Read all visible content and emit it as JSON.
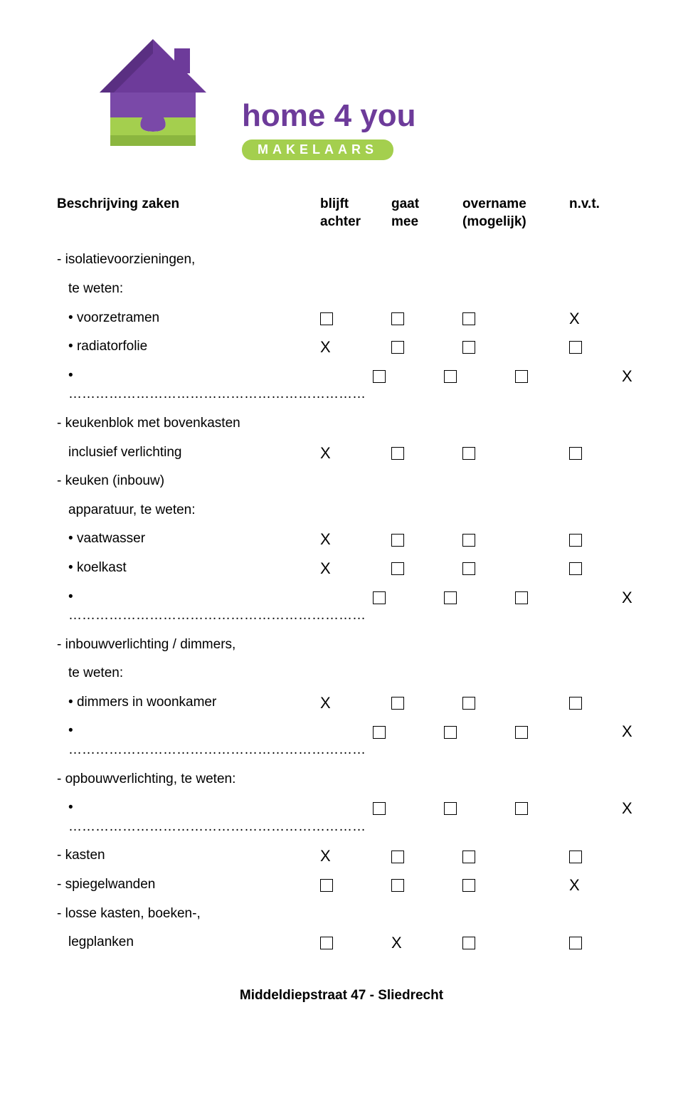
{
  "colors": {
    "brand_purple": "#6d3b9a",
    "brand_green_light": "#a4cf4e",
    "brand_green_dark": "#8bb63f",
    "text": "#000000",
    "pill_text": "#ffffff"
  },
  "logo": {
    "brand_text": "home 4 you",
    "brand_fontsize": 44,
    "subbrand_text": "MAKELAARS",
    "subbrand_fontsize": 18
  },
  "header": {
    "col_desc": "Beschrijving zaken",
    "col1_line1": "blijft",
    "col1_line2": "achter",
    "col2_line1": "gaat",
    "col2_line2": "mee",
    "col3_line1": "overname",
    "col3_line2": "(mogelijk)",
    "col4_line1": "n.v.t.",
    "col4_line2": ""
  },
  "rows": [
    {
      "kind": "section",
      "label": "- isolatievoorzieningen,",
      "c": [
        null,
        null,
        null,
        null
      ]
    },
    {
      "kind": "sub",
      "label": "  te weten:",
      "c": [
        null,
        null,
        null,
        null
      ]
    },
    {
      "kind": "item",
      "label": "voorzetramen",
      "c": [
        "box",
        "box",
        "box",
        "X"
      ]
    },
    {
      "kind": "item",
      "label": "radiatorfolie",
      "c": [
        "X",
        "box",
        "box",
        "box"
      ]
    },
    {
      "kind": "item",
      "label": "…………………………………………………………",
      "c": [
        "box",
        "box",
        "box",
        "X"
      ]
    },
    {
      "kind": "section",
      "label": "- keukenblok met bovenkasten",
      "c": [
        null,
        null,
        null,
        null
      ]
    },
    {
      "kind": "sub",
      "label": "  inclusief verlichting",
      "c": [
        "X",
        "box",
        "box",
        "box"
      ]
    },
    {
      "kind": "section",
      "label": "- keuken (inbouw)",
      "c": [
        null,
        null,
        null,
        null
      ]
    },
    {
      "kind": "sub",
      "label": "  apparatuur, te weten:",
      "c": [
        null,
        null,
        null,
        null
      ]
    },
    {
      "kind": "item",
      "label": "vaatwasser",
      "c": [
        "X",
        "box",
        "box",
        "box"
      ]
    },
    {
      "kind": "item",
      "label": "koelkast",
      "c": [
        "X",
        "box",
        "box",
        "box"
      ]
    },
    {
      "kind": "item",
      "label": "…………………………………………………………",
      "c": [
        "box",
        "box",
        "box",
        "X"
      ]
    },
    {
      "kind": "section",
      "label": "- inbouwverlichting / dimmers,",
      "c": [
        null,
        null,
        null,
        null
      ]
    },
    {
      "kind": "sub",
      "label": "  te weten:",
      "c": [
        null,
        null,
        null,
        null
      ]
    },
    {
      "kind": "item",
      "label": "dimmers in woonkamer",
      "c": [
        "X",
        "box",
        "box",
        "box"
      ]
    },
    {
      "kind": "item",
      "label": "…………………………………………………………",
      "c": [
        "box",
        "box",
        "box",
        "X"
      ]
    },
    {
      "kind": "section",
      "label": "- opbouwverlichting, te weten:",
      "c": [
        null,
        null,
        null,
        null
      ]
    },
    {
      "kind": "item",
      "label": "…………………………………………………………",
      "c": [
        "box",
        "box",
        "box",
        "X"
      ]
    },
    {
      "kind": "section",
      "label": "- kasten",
      "c": [
        "X",
        "box",
        "box",
        "box"
      ]
    },
    {
      "kind": "section",
      "label": "- spiegelwanden",
      "c": [
        "box",
        "box",
        "box",
        "X"
      ]
    },
    {
      "kind": "section",
      "label": "- losse kasten, boeken-,",
      "c": [
        null,
        null,
        null,
        null
      ]
    },
    {
      "kind": "sub",
      "label": "  legplanken",
      "c": [
        "box",
        "X",
        "box",
        "box"
      ]
    }
  ],
  "footer": "Middeldiepstraat 47 - Sliedrecht"
}
